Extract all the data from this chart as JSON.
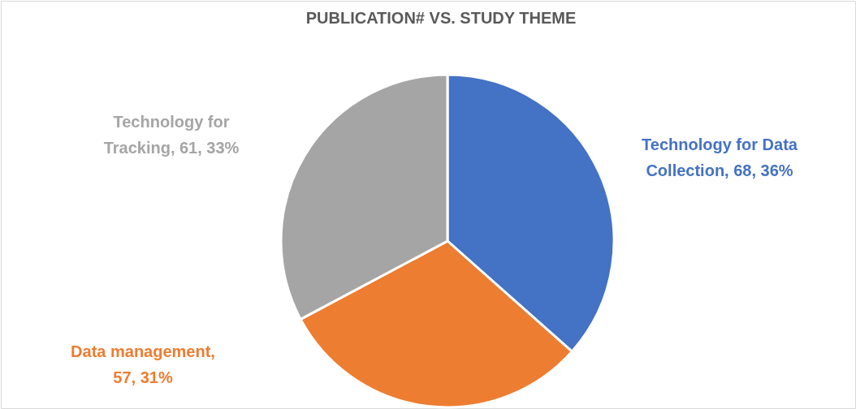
{
  "chart_data": {
    "type": "pie",
    "title": "PUBLICATION# VS. STUDY THEME",
    "categories": [
      "Technology for Data Collection",
      "Data management",
      "Technology for Tracking"
    ],
    "values": [
      68,
      57,
      61
    ],
    "value_labels": [
      ", 68, 36%",
      ", 57, 31%",
      ", 61, 33%"
    ],
    "colors": [
      "#4472c4",
      "#ed7d31",
      "#a5a5a5"
    ]
  }
}
